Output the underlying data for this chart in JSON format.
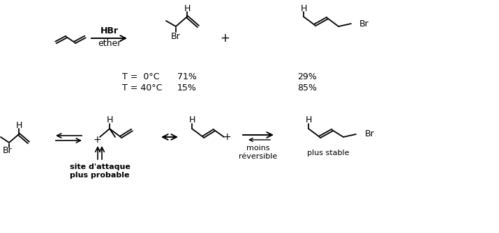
{
  "bg_color": "#ffffff",
  "figsize": [
    7.15,
    3.35
  ],
  "dpi": 100,
  "HBr": "HBr",
  "ether": "ether",
  "plus1": "+",
  "T0": "T =  0°C",
  "T40": "T = 40°C",
  "pct_71": "71%",
  "pct_29": "29%",
  "pct_15": "15%",
  "pct_85": "85%",
  "site_attaque": "site d'attaque\nplus probable",
  "moins_reversible": "moins\nréversible",
  "plus_stable": "plus stable"
}
